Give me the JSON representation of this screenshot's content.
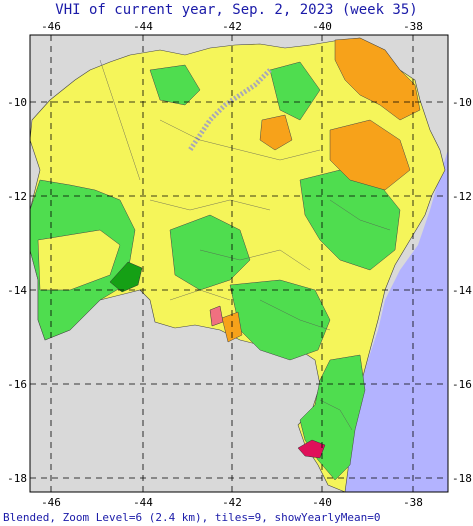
{
  "title": "VHI of current year, Sep. 2, 2023 (week 35)",
  "footer": "Blended, Zoom Level=6 (2.4 km), tiles=9, showYearlyMean=0",
  "axes": {
    "lon_ticks": [
      "-46",
      "-44",
      "-42",
      "-40",
      "-38"
    ],
    "lat_ticks": [
      "-10",
      "-12",
      "-14",
      "-16",
      "-18"
    ]
  },
  "colors": {
    "ocean": "#b3b3ff",
    "land_outside": "#d9d9d9",
    "vhi_yellow": "#f5f55a",
    "vhi_light_green": "#4fdd4f",
    "vhi_dark_green": "#15a015",
    "vhi_orange": "#f7a21a",
    "vhi_pink": "#f07080",
    "vhi_magenta": "#e0105a",
    "river_gray": "#a8a8b8",
    "grid": "#000000"
  }
}
